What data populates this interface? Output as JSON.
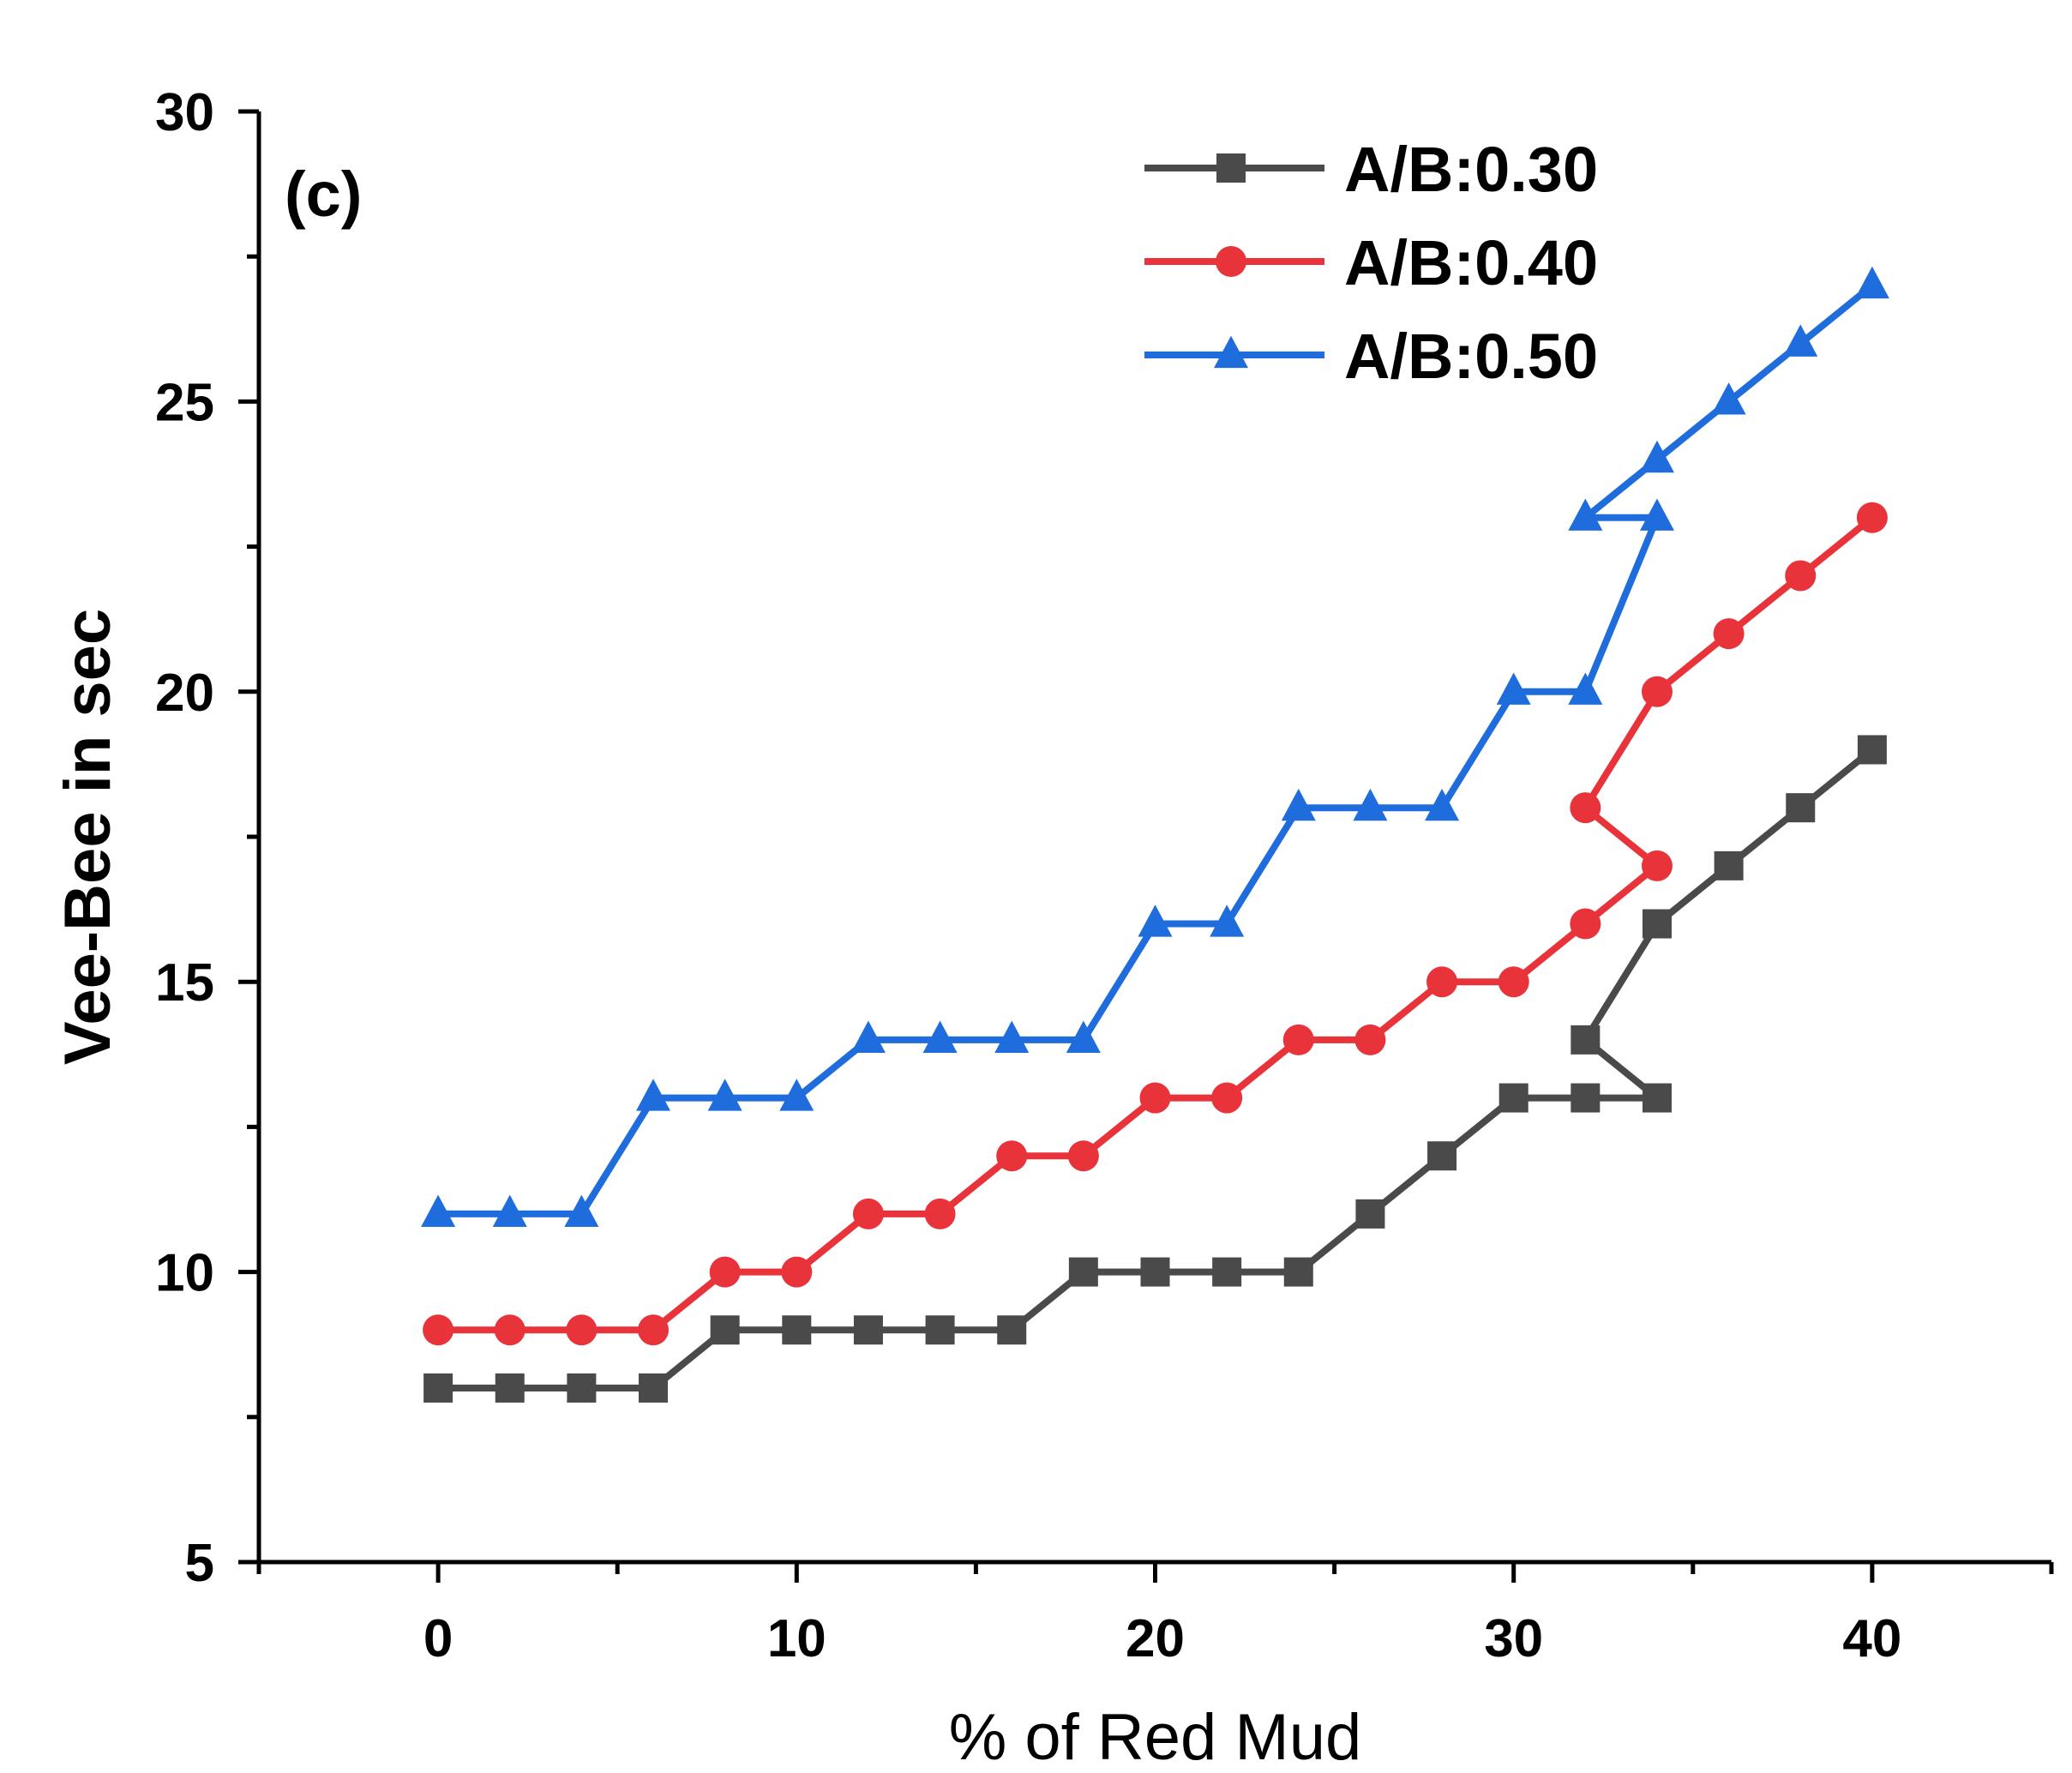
{
  "chart_data": {
    "type": "line",
    "panel_label": "(c)",
    "xlabel": "% of Red Mud",
    "ylabel": "Vee-Bee in sec",
    "xlim": [
      -5,
      45
    ],
    "ylim": [
      5,
      30
    ],
    "x_ticks": [
      0,
      10,
      20,
      30,
      40
    ],
    "x_minor_ticks": [
      -5,
      5,
      15,
      25,
      35,
      45
    ],
    "y_ticks": [
      5,
      10,
      15,
      20,
      25,
      30
    ],
    "y_minor_ticks": [
      7.5,
      12.5,
      17.5,
      22.5,
      27.5
    ],
    "legend_position": "top-right",
    "grid": false,
    "series": [
      {
        "name": "A/B:0.30",
        "color": "#4a4a4a",
        "marker": "square",
        "x": [
          0,
          2,
          4,
          6,
          8,
          10,
          12,
          14,
          16,
          18,
          20,
          22,
          24,
          26,
          28,
          30,
          32,
          34,
          32,
          34,
          36,
          38,
          40
        ],
        "y": [
          8,
          8,
          8,
          8,
          9,
          9,
          9,
          9,
          9,
          10,
          10,
          10,
          10,
          11,
          12,
          13,
          13,
          13,
          14,
          16,
          17,
          18,
          19
        ]
      },
      {
        "name": "A/B:0.40",
        "color": "#e8333a",
        "marker": "circle",
        "x": [
          0,
          2,
          4,
          6,
          8,
          10,
          12,
          14,
          16,
          18,
          20,
          22,
          24,
          26,
          28,
          30,
          32,
          34,
          32,
          34,
          36,
          38,
          40
        ],
        "y": [
          9,
          9,
          9,
          9,
          10,
          10,
          11,
          11,
          12,
          12,
          13,
          13,
          14,
          14,
          15,
          15,
          16,
          17,
          18,
          20,
          21,
          22,
          23
        ]
      },
      {
        "name": "A/B:0.50",
        "color": "#1f6ddc",
        "marker": "triangle",
        "x": [
          0,
          2,
          4,
          6,
          8,
          10,
          12,
          14,
          16,
          18,
          20,
          22,
          24,
          26,
          28,
          30,
          32,
          34,
          32,
          34,
          36,
          38,
          40
        ],
        "y": [
          11,
          11,
          11,
          13,
          13,
          13,
          14,
          14,
          14,
          14,
          16,
          16,
          18,
          18,
          18,
          20,
          20,
          23,
          23,
          24,
          25,
          26,
          27
        ]
      }
    ]
  }
}
